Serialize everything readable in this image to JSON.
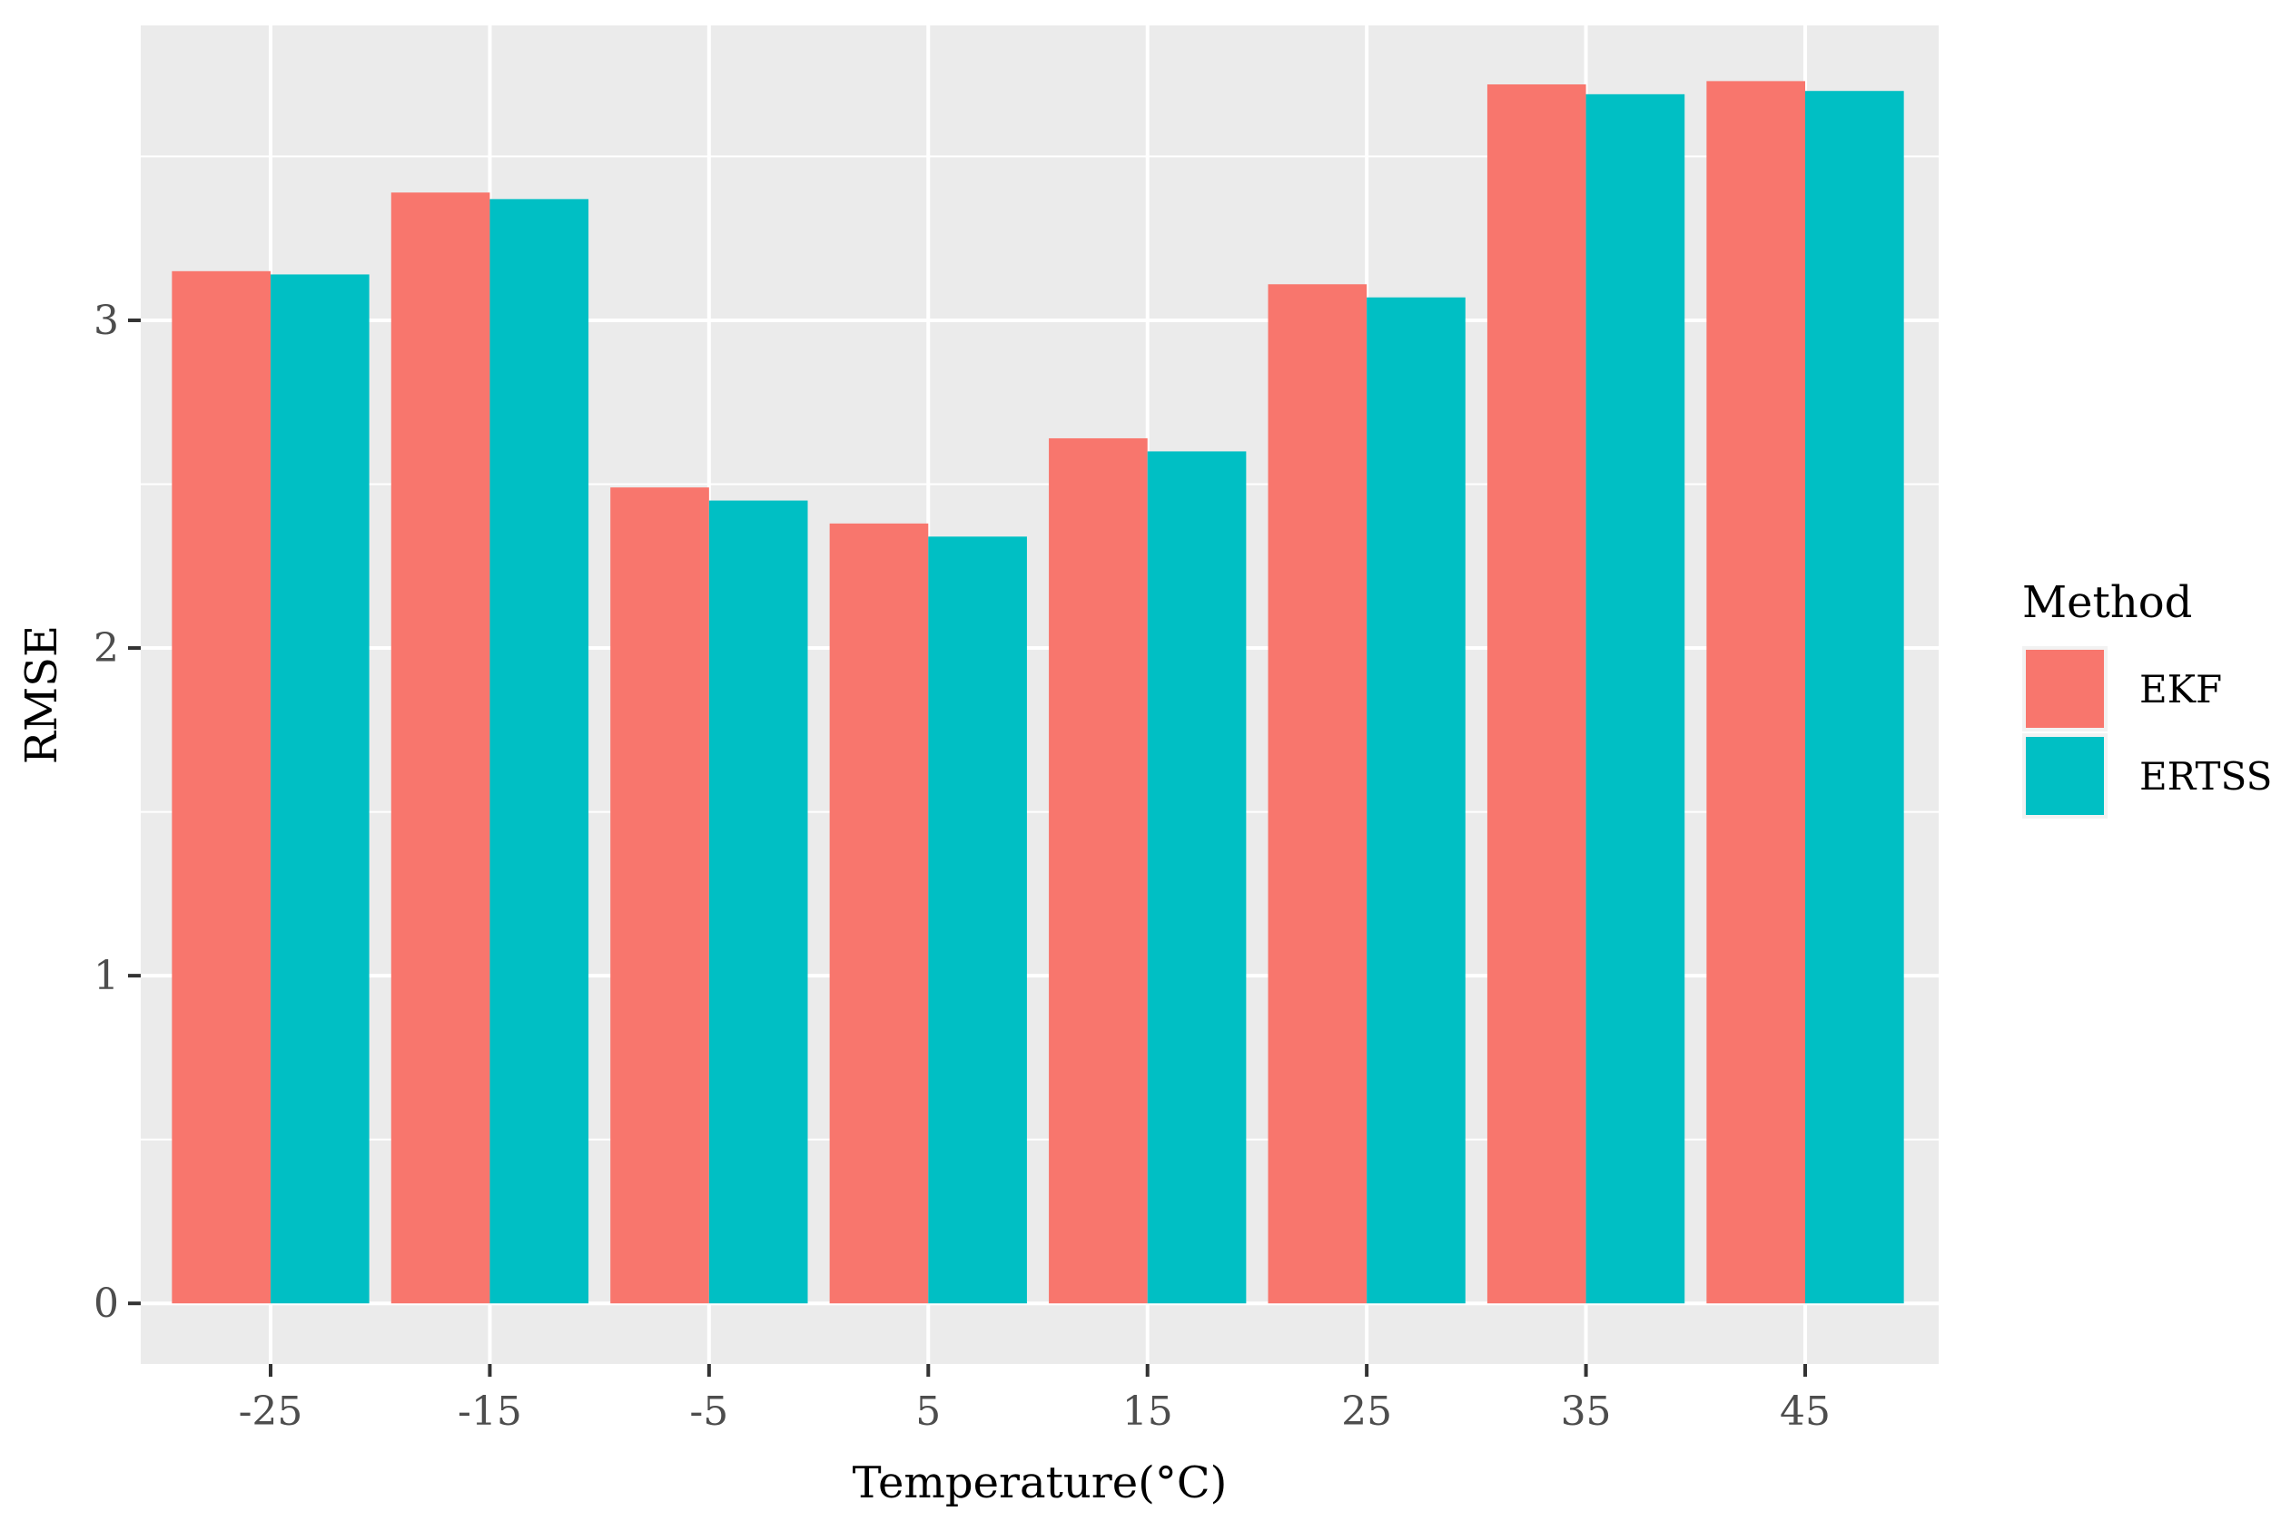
{
  "chart_data": {
    "type": "bar",
    "title": "",
    "xlabel": "Temperature(°C)",
    "ylabel": "RMSE",
    "categories": [
      "-25",
      "-15",
      "-5",
      "5",
      "15",
      "25",
      "35",
      "45"
    ],
    "series": [
      {
        "name": "EKF",
        "color": "#F8766D",
        "values": [
          3.15,
          3.39,
          2.49,
          2.38,
          2.64,
          3.11,
          3.72,
          3.73
        ]
      },
      {
        "name": "ERTSS",
        "color": "#00BFC4",
        "values": [
          3.14,
          3.37,
          2.45,
          2.34,
          2.6,
          3.07,
          3.69,
          3.7
        ]
      }
    ],
    "ylim": [
      -0.185,
      3.9
    ],
    "yticks": [
      0,
      1,
      2,
      3
    ],
    "legend_title": "Method",
    "legend_position": "right",
    "grid": true,
    "panel_background": "#EBEBEB",
    "grid_color": "#FFFFFF"
  }
}
